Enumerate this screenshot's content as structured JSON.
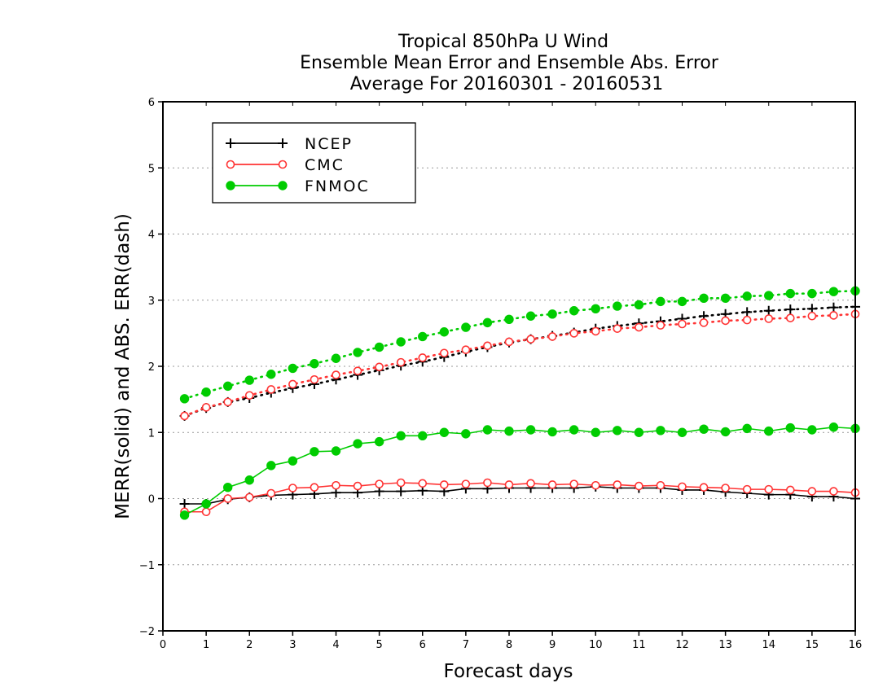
{
  "chart_data": {
    "type": "line",
    "title": [
      "Tropical 850hPa U Wind",
      "Ensemble Mean Error and Ensemble Abs. Error",
      "Average For 20160301 - 20160531"
    ],
    "xlabel": "Forecast days",
    "ylabel": "MERR(solid) and ABS. ERR(dash)",
    "xlim": [
      0,
      16
    ],
    "ylim": [
      -2,
      6
    ],
    "xticks": [
      "0",
      "1",
      "2",
      "3",
      "4",
      "5",
      "6",
      "7",
      "8",
      "9",
      "10",
      "11",
      "12",
      "13",
      "14",
      "15",
      "16"
    ],
    "yticks": [
      "6",
      "5",
      "4",
      "3",
      "2",
      "1",
      "0",
      "−1",
      "−2"
    ],
    "grid": "horizontal-dotted",
    "legend_position": "top-left",
    "x": [
      0.5,
      1,
      1.5,
      2,
      2.5,
      3,
      3.5,
      4,
      4.5,
      5,
      5.5,
      6,
      6.5,
      7,
      7.5,
      8,
      8.5,
      9,
      9.5,
      10,
      10.5,
      11,
      11.5,
      12,
      12.5,
      13,
      13.5,
      14,
      14.5,
      15,
      15.5,
      16
    ],
    "series": [
      {
        "name": "NCEP",
        "color": "#000000",
        "marker": "plus",
        "merr": [
          -0.08,
          -0.08,
          -0.01,
          0.02,
          0.05,
          0.06,
          0.07,
          0.09,
          0.09,
          0.11,
          0.11,
          0.12,
          0.11,
          0.15,
          0.15,
          0.16,
          0.16,
          0.16,
          0.16,
          0.18,
          0.16,
          0.16,
          0.16,
          0.13,
          0.13,
          0.1,
          0.08,
          0.06,
          0.06,
          0.03,
          0.03,
          0.0
        ],
        "abs_err": [
          1.25,
          1.37,
          1.46,
          1.52,
          1.6,
          1.67,
          1.73,
          1.8,
          1.87,
          1.94,
          2.01,
          2.07,
          2.14,
          2.22,
          2.29,
          2.36,
          2.41,
          2.46,
          2.51,
          2.57,
          2.61,
          2.65,
          2.68,
          2.72,
          2.76,
          2.79,
          2.82,
          2.84,
          2.86,
          2.87,
          2.89,
          2.9
        ]
      },
      {
        "name": "CMC",
        "color": "#ff3333",
        "marker": "open-circle",
        "merr": [
          -0.2,
          -0.2,
          0.0,
          0.02,
          0.08,
          0.16,
          0.17,
          0.2,
          0.19,
          0.22,
          0.24,
          0.23,
          0.21,
          0.22,
          0.24,
          0.21,
          0.23,
          0.21,
          0.22,
          0.2,
          0.21,
          0.19,
          0.2,
          0.18,
          0.17,
          0.16,
          0.14,
          0.14,
          0.13,
          0.11,
          0.11,
          0.09
        ],
        "abs_err": [
          1.25,
          1.38,
          1.46,
          1.56,
          1.65,
          1.73,
          1.8,
          1.87,
          1.93,
          1.99,
          2.06,
          2.13,
          2.2,
          2.25,
          2.31,
          2.37,
          2.41,
          2.45,
          2.5,
          2.53,
          2.57,
          2.59,
          2.62,
          2.64,
          2.66,
          2.69,
          2.7,
          2.72,
          2.73,
          2.76,
          2.77,
          2.79
        ]
      },
      {
        "name": "FNMOC",
        "color": "#00cc00",
        "marker": "filled-circle",
        "merr": [
          -0.25,
          -0.08,
          0.17,
          0.28,
          0.5,
          0.57,
          0.71,
          0.72,
          0.83,
          0.86,
          0.95,
          0.95,
          1.0,
          0.98,
          1.04,
          1.02,
          1.04,
          1.01,
          1.04,
          1.0,
          1.03,
          1.0,
          1.03,
          1.0,
          1.05,
          1.01,
          1.06,
          1.02,
          1.07,
          1.04,
          1.08,
          1.06
        ],
        "abs_err": [
          1.51,
          1.61,
          1.7,
          1.79,
          1.88,
          1.97,
          2.04,
          2.12,
          2.21,
          2.29,
          2.37,
          2.45,
          2.52,
          2.59,
          2.66,
          2.71,
          2.76,
          2.79,
          2.84,
          2.87,
          2.91,
          2.93,
          2.98,
          2.98,
          3.03,
          3.03,
          3.06,
          3.07,
          3.1,
          3.1,
          3.13,
          3.14
        ]
      }
    ]
  }
}
